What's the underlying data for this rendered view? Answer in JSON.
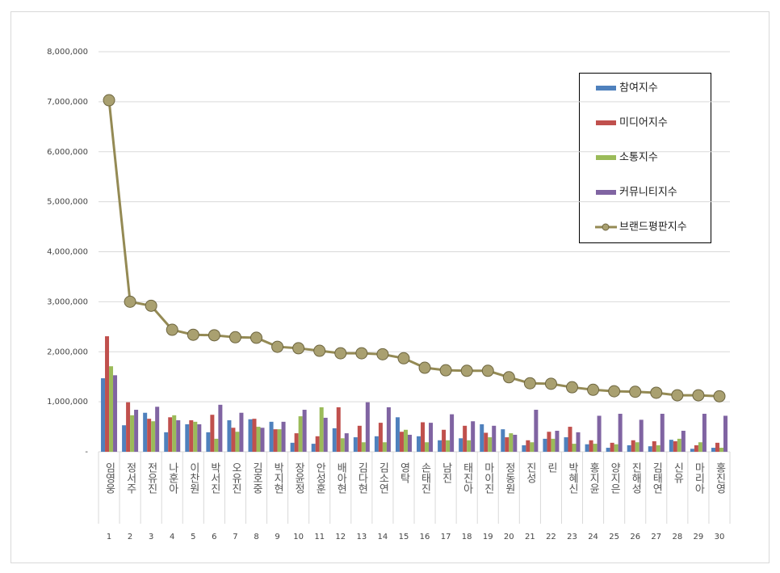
{
  "chart_data": {
    "type": "bar",
    "categories": [
      "임영웅",
      "정서주",
      "전유진",
      "나훈아",
      "이찬원",
      "박서진",
      "오유진",
      "김호중",
      "박지현",
      "장윤정",
      "안성훈",
      "배아현",
      "김다현",
      "김소연",
      "영탁",
      "손태진",
      "남진",
      "태진아",
      "마이진",
      "정동원",
      "진성",
      "린",
      "박혜신",
      "홍지윤",
      "양지은",
      "진해성",
      "김태연",
      "신유",
      "마리아",
      "홍진영"
    ],
    "ranks": [
      1,
      2,
      3,
      4,
      5,
      6,
      7,
      8,
      9,
      10,
      11,
      12,
      13,
      14,
      15,
      16,
      17,
      18,
      19,
      20,
      21,
      22,
      23,
      24,
      25,
      26,
      27,
      28,
      29,
      30
    ],
    "series": [
      {
        "name": "참여지수",
        "color": "#4f81bd",
        "values": [
          1470000,
          530000,
          780000,
          390000,
          550000,
          390000,
          630000,
          650000,
          600000,
          180000,
          160000,
          470000,
          290000,
          310000,
          690000,
          310000,
          230000,
          270000,
          550000,
          450000,
          130000,
          260000,
          290000,
          150000,
          80000,
          130000,
          110000,
          240000,
          60000,
          80000
        ]
      },
      {
        "name": "미디어지수",
        "color": "#c0504d",
        "values": [
          2310000,
          990000,
          660000,
          690000,
          630000,
          740000,
          480000,
          660000,
          450000,
          370000,
          310000,
          890000,
          520000,
          580000,
          400000,
          590000,
          440000,
          520000,
          380000,
          290000,
          230000,
          400000,
          500000,
          230000,
          180000,
          230000,
          210000,
          210000,
          130000,
          180000
        ]
      },
      {
        "name": "소통지수",
        "color": "#9bbb59",
        "values": [
          1710000,
          730000,
          610000,
          730000,
          600000,
          260000,
          400000,
          500000,
          450000,
          710000,
          890000,
          270000,
          190000,
          190000,
          440000,
          190000,
          230000,
          230000,
          290000,
          370000,
          190000,
          260000,
          160000,
          160000,
          150000,
          190000,
          130000,
          260000,
          190000,
          80000
        ]
      },
      {
        "name": "커뮤니티지수",
        "color": "#8064a2",
        "values": [
          1530000,
          840000,
          900000,
          630000,
          550000,
          940000,
          780000,
          480000,
          600000,
          840000,
          680000,
          370000,
          990000,
          890000,
          340000,
          580000,
          750000,
          610000,
          520000,
          340000,
          840000,
          420000,
          390000,
          720000,
          760000,
          640000,
          760000,
          420000,
          760000,
          720000
        ]
      },
      {
        "name": "브랜드평판지수",
        "type": "line",
        "color": "#948a54",
        "values": [
          7030000,
          3000000,
          2920000,
          2440000,
          2340000,
          2330000,
          2290000,
          2280000,
          2100000,
          2070000,
          2020000,
          1970000,
          1970000,
          1950000,
          1870000,
          1680000,
          1630000,
          1620000,
          1620000,
          1490000,
          1370000,
          1360000,
          1290000,
          1240000,
          1210000,
          1200000,
          1180000,
          1130000,
          1130000,
          1110000
        ]
      }
    ],
    "ylim": [
      0,
      8000000
    ],
    "yticks": [
      {
        "value": 0,
        "label": "-"
      },
      {
        "value": 1000000,
        "label": "1,000,000"
      },
      {
        "value": 2000000,
        "label": "2,000,000"
      },
      {
        "value": 3000000,
        "label": "3,000,000"
      },
      {
        "value": 4000000,
        "label": "4,000,000"
      },
      {
        "value": 5000000,
        "label": "5,000,000"
      },
      {
        "value": 6000000,
        "label": "6,000,000"
      },
      {
        "value": 7000000,
        "label": "7,000,000"
      },
      {
        "value": 8000000,
        "label": "8,000,000"
      }
    ],
    "grid": true
  }
}
